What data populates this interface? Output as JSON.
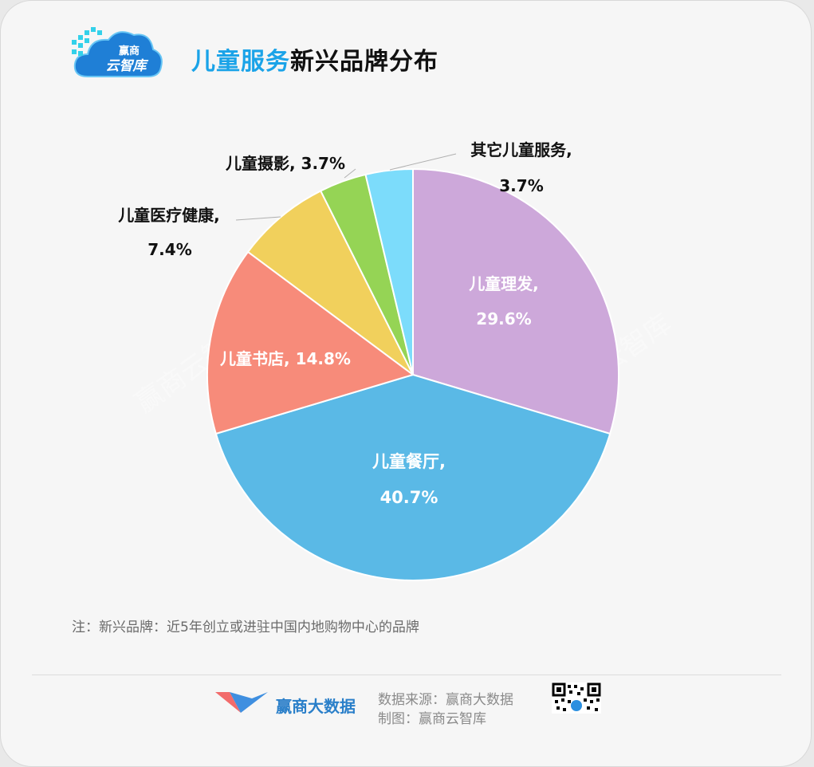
{
  "header": {
    "logo_text_top": "赢商",
    "logo_text_bottom": "云智库",
    "title_highlight": "儿童服务",
    "title_rest": "新兴品牌分布"
  },
  "chart_data": {
    "type": "pie",
    "title": "儿童服务新兴品牌分布",
    "start_angle_deg": 0,
    "direction": "clockwise",
    "slices": [
      {
        "name": "儿童理发",
        "value": 29.6,
        "label": "29.6%",
        "color": "#cda8da"
      },
      {
        "name": "儿童餐厅",
        "value": 40.7,
        "label": "40.7%",
        "color": "#5ab9e6"
      },
      {
        "name": "儿童书店",
        "value": 14.8,
        "label": "14.8%",
        "color": "#f78b7a"
      },
      {
        "name": "儿童医疗健康",
        "value": 7.4,
        "label": "7.4%",
        "color": "#f1d05c"
      },
      {
        "name": "儿童摄影",
        "value": 3.7,
        "label": "3.7%",
        "color": "#95d455"
      },
      {
        "name": "其它儿童服务",
        "value": 3.7,
        "label": "3.7%",
        "color": "#7cdcfb"
      }
    ],
    "labels": [
      {
        "line1": "儿童理发,",
        "line2": "29.6%"
      },
      {
        "line1": "儿童餐厅,",
        "line2": "40.7%"
      },
      {
        "line1": "儿童书店, 14.8%",
        "line2": ""
      },
      {
        "line1": "儿童医疗健康,",
        "line2": "7.4%"
      },
      {
        "line1": "儿童摄影, 3.7%",
        "line2": ""
      },
      {
        "line1": "其它儿童服务,",
        "line2": "3.7%"
      }
    ]
  },
  "watermark": "赢商云智库",
  "note": "注：新兴品牌：近5年创立或进驻中国内地购物中心的品牌",
  "footer": {
    "brand": "赢商大数据",
    "source_line1": "数据来源：赢商大数据",
    "source_line2": "制图：赢商云智库"
  }
}
